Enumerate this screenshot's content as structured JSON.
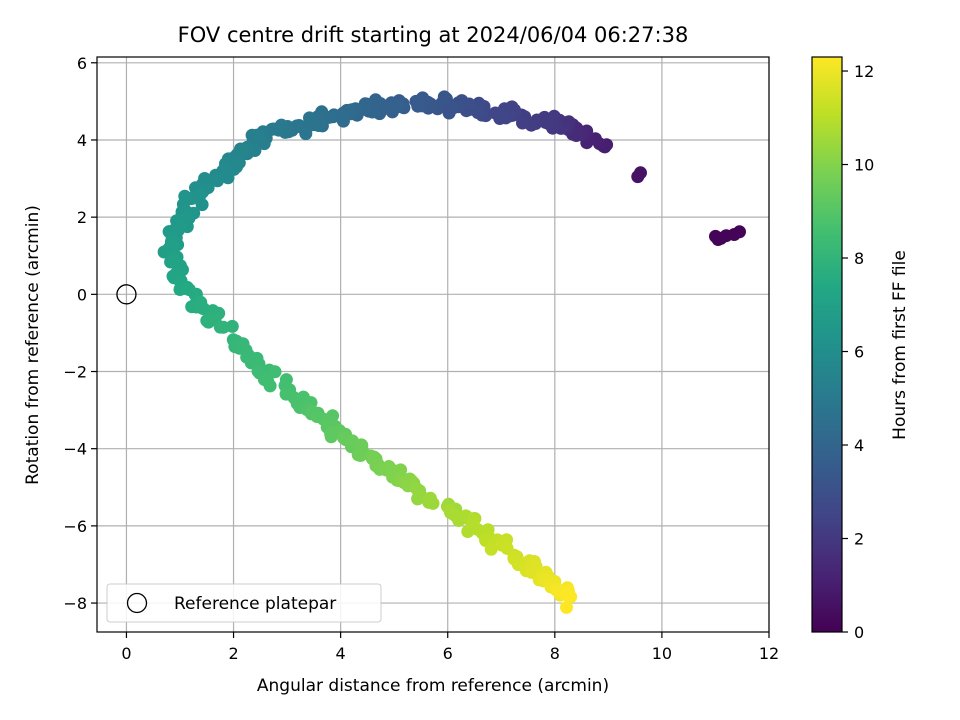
{
  "chart_data": {
    "type": "scatter",
    "title": "FOV centre drift starting at 2024/06/04 06:27:38",
    "xlabel": "Angular distance from reference (arcmin)",
    "ylabel": "Rotation from reference (arcmin)",
    "xlim": [
      -0.55,
      12.0
    ],
    "ylim": [
      -8.75,
      6.15
    ],
    "xticks": [
      "0",
      "2",
      "4",
      "6",
      "8",
      "10",
      "12"
    ],
    "xtick_values": [
      0,
      2,
      4,
      6,
      8,
      10,
      12
    ],
    "yticks": [
      "−8",
      "−6",
      "−4",
      "−2",
      "0",
      "2",
      "4",
      "6"
    ],
    "ytick_values": [
      -8,
      -6,
      -4,
      -2,
      0,
      2,
      4,
      6
    ],
    "grid": true,
    "legend": {
      "placement": "lower-left",
      "entries": [
        "Reference platepar"
      ]
    },
    "colorbar": {
      "label": "Hours from first FF file",
      "range": [
        0,
        12.3
      ],
      "ticks": [
        "0",
        "2",
        "4",
        "6",
        "8",
        "10",
        "12"
      ],
      "tick_values": [
        0,
        2,
        4,
        6,
        8,
        10,
        12
      ],
      "colormap": "viridis"
    },
    "reference_point": {
      "x": 0,
      "y": 0,
      "label": "Reference platepar"
    },
    "path_keypoints": [
      {
        "t": 0.0,
        "x": 11.2,
        "y": 1.55
      },
      {
        "t": 0.3,
        "x": 11.4,
        "y": 1.6
      },
      {
        "t": 0.5,
        "x": 9.6,
        "y": 3.1
      },
      {
        "t": 1.2,
        "x": 8.6,
        "y": 4.1
      },
      {
        "t": 2.0,
        "x": 7.9,
        "y": 4.5
      },
      {
        "t": 2.8,
        "x": 6.5,
        "y": 4.8
      },
      {
        "t": 3.4,
        "x": 5.6,
        "y": 5.0
      },
      {
        "t": 4.0,
        "x": 4.5,
        "y": 4.8
      },
      {
        "t": 4.6,
        "x": 3.5,
        "y": 4.5
      },
      {
        "t": 5.2,
        "x": 2.5,
        "y": 4.0
      },
      {
        "t": 5.8,
        "x": 1.8,
        "y": 3.2
      },
      {
        "t": 6.3,
        "x": 1.2,
        "y": 2.3
      },
      {
        "t": 6.8,
        "x": 0.8,
        "y": 1.3
      },
      {
        "t": 7.3,
        "x": 1.0,
        "y": 0.3
      },
      {
        "t": 7.8,
        "x": 1.6,
        "y": -0.6
      },
      {
        "t": 8.3,
        "x": 2.4,
        "y": -1.8
      },
      {
        "t": 8.8,
        "x": 3.3,
        "y": -2.9
      },
      {
        "t": 9.4,
        "x": 4.2,
        "y": -3.9
      },
      {
        "t": 10.1,
        "x": 5.2,
        "y": -4.9
      },
      {
        "t": 10.8,
        "x": 6.4,
        "y": -5.9
      },
      {
        "t": 11.5,
        "x": 7.4,
        "y": -6.9
      },
      {
        "t": 12.3,
        "x": 8.3,
        "y": -7.9
      }
    ],
    "point_count": 430,
    "clusters": [
      {
        "t": 0.1,
        "points": [
          [
            11.0,
            1.5
          ],
          [
            11.1,
            1.45
          ],
          [
            11.2,
            1.52
          ],
          [
            11.35,
            1.55
          ],
          [
            11.45,
            1.62
          ],
          [
            11.05,
            1.42
          ]
        ]
      },
      {
        "t": 0.6,
        "points": [
          [
            9.55,
            3.05
          ],
          [
            9.6,
            3.15
          ]
        ]
      }
    ]
  }
}
